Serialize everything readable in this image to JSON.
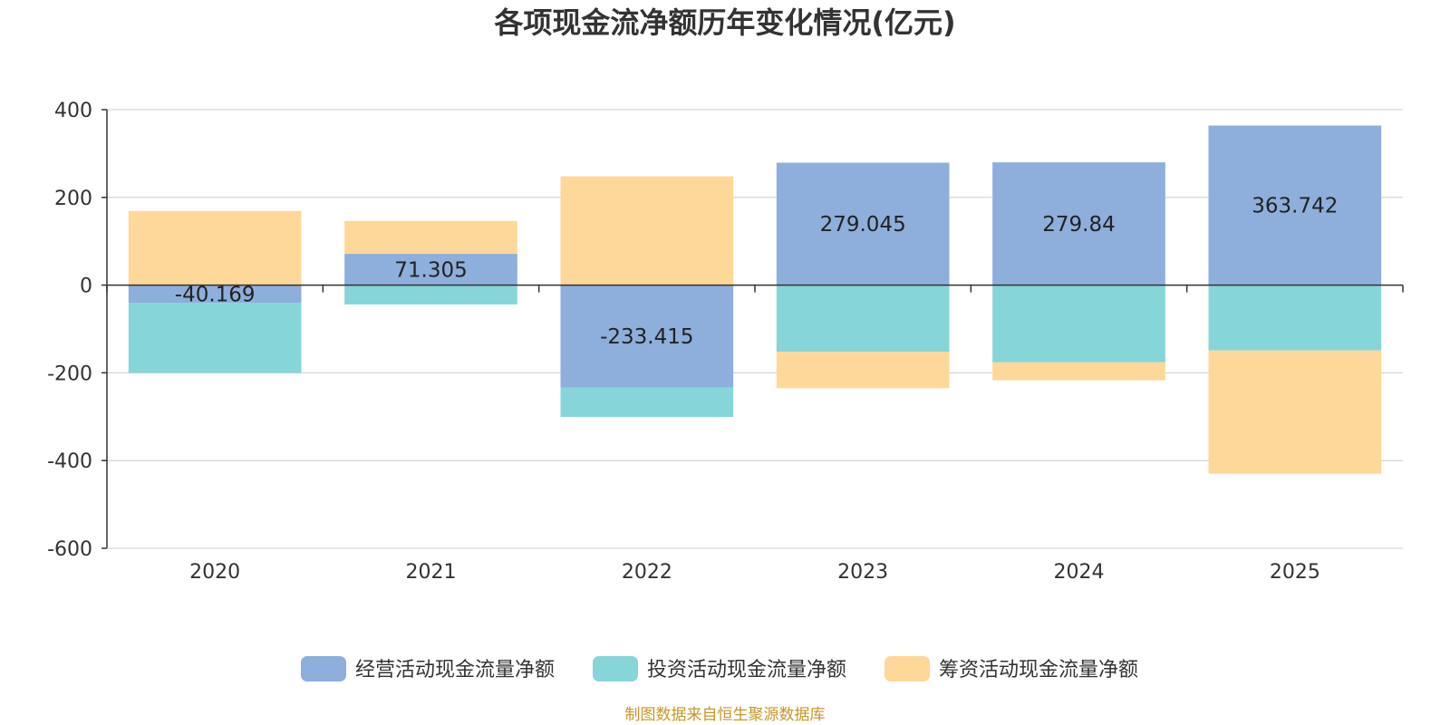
{
  "chart_data": {
    "type": "bar",
    "stacked": true,
    "title": "各项现金流净额历年变化情况(亿元)",
    "categories": [
      "2020",
      "2021",
      "2022",
      "2023",
      "2024",
      "2025"
    ],
    "ylim": [
      -600,
      400
    ],
    "yticks": [
      400,
      200,
      0,
      -200,
      -400,
      -600
    ],
    "grid": true,
    "legend_position": "bottom",
    "series": [
      {
        "name": "经营活动现金流量净额",
        "color": "#8eaedb",
        "values": [
          -40.169,
          71.305,
          -233.415,
          279.045,
          279.84,
          363.742
        ]
      },
      {
        "name": "投资活动现金流量净额",
        "color": "#86d5d8",
        "values": [
          -160,
          -44,
          -67,
          -152,
          -176,
          -149
        ]
      },
      {
        "name": "筹资活动现金流量净额",
        "color": "#fed898",
        "values": [
          169,
          75,
          248,
          -83,
          -41,
          -281
        ]
      }
    ],
    "data_labels": [
      {
        "series": 0,
        "index": 0,
        "text": "-40.169"
      },
      {
        "series": 0,
        "index": 1,
        "text": "71.305"
      },
      {
        "series": 0,
        "index": 2,
        "text": "-233.415"
      },
      {
        "series": 0,
        "index": 3,
        "text": "279.045"
      },
      {
        "series": 0,
        "index": 4,
        "text": "279.84"
      },
      {
        "series": 0,
        "index": 5,
        "text": "363.742"
      }
    ],
    "source": "制图数据来自恒生聚源数据库",
    "source_color": "#c8962a"
  }
}
